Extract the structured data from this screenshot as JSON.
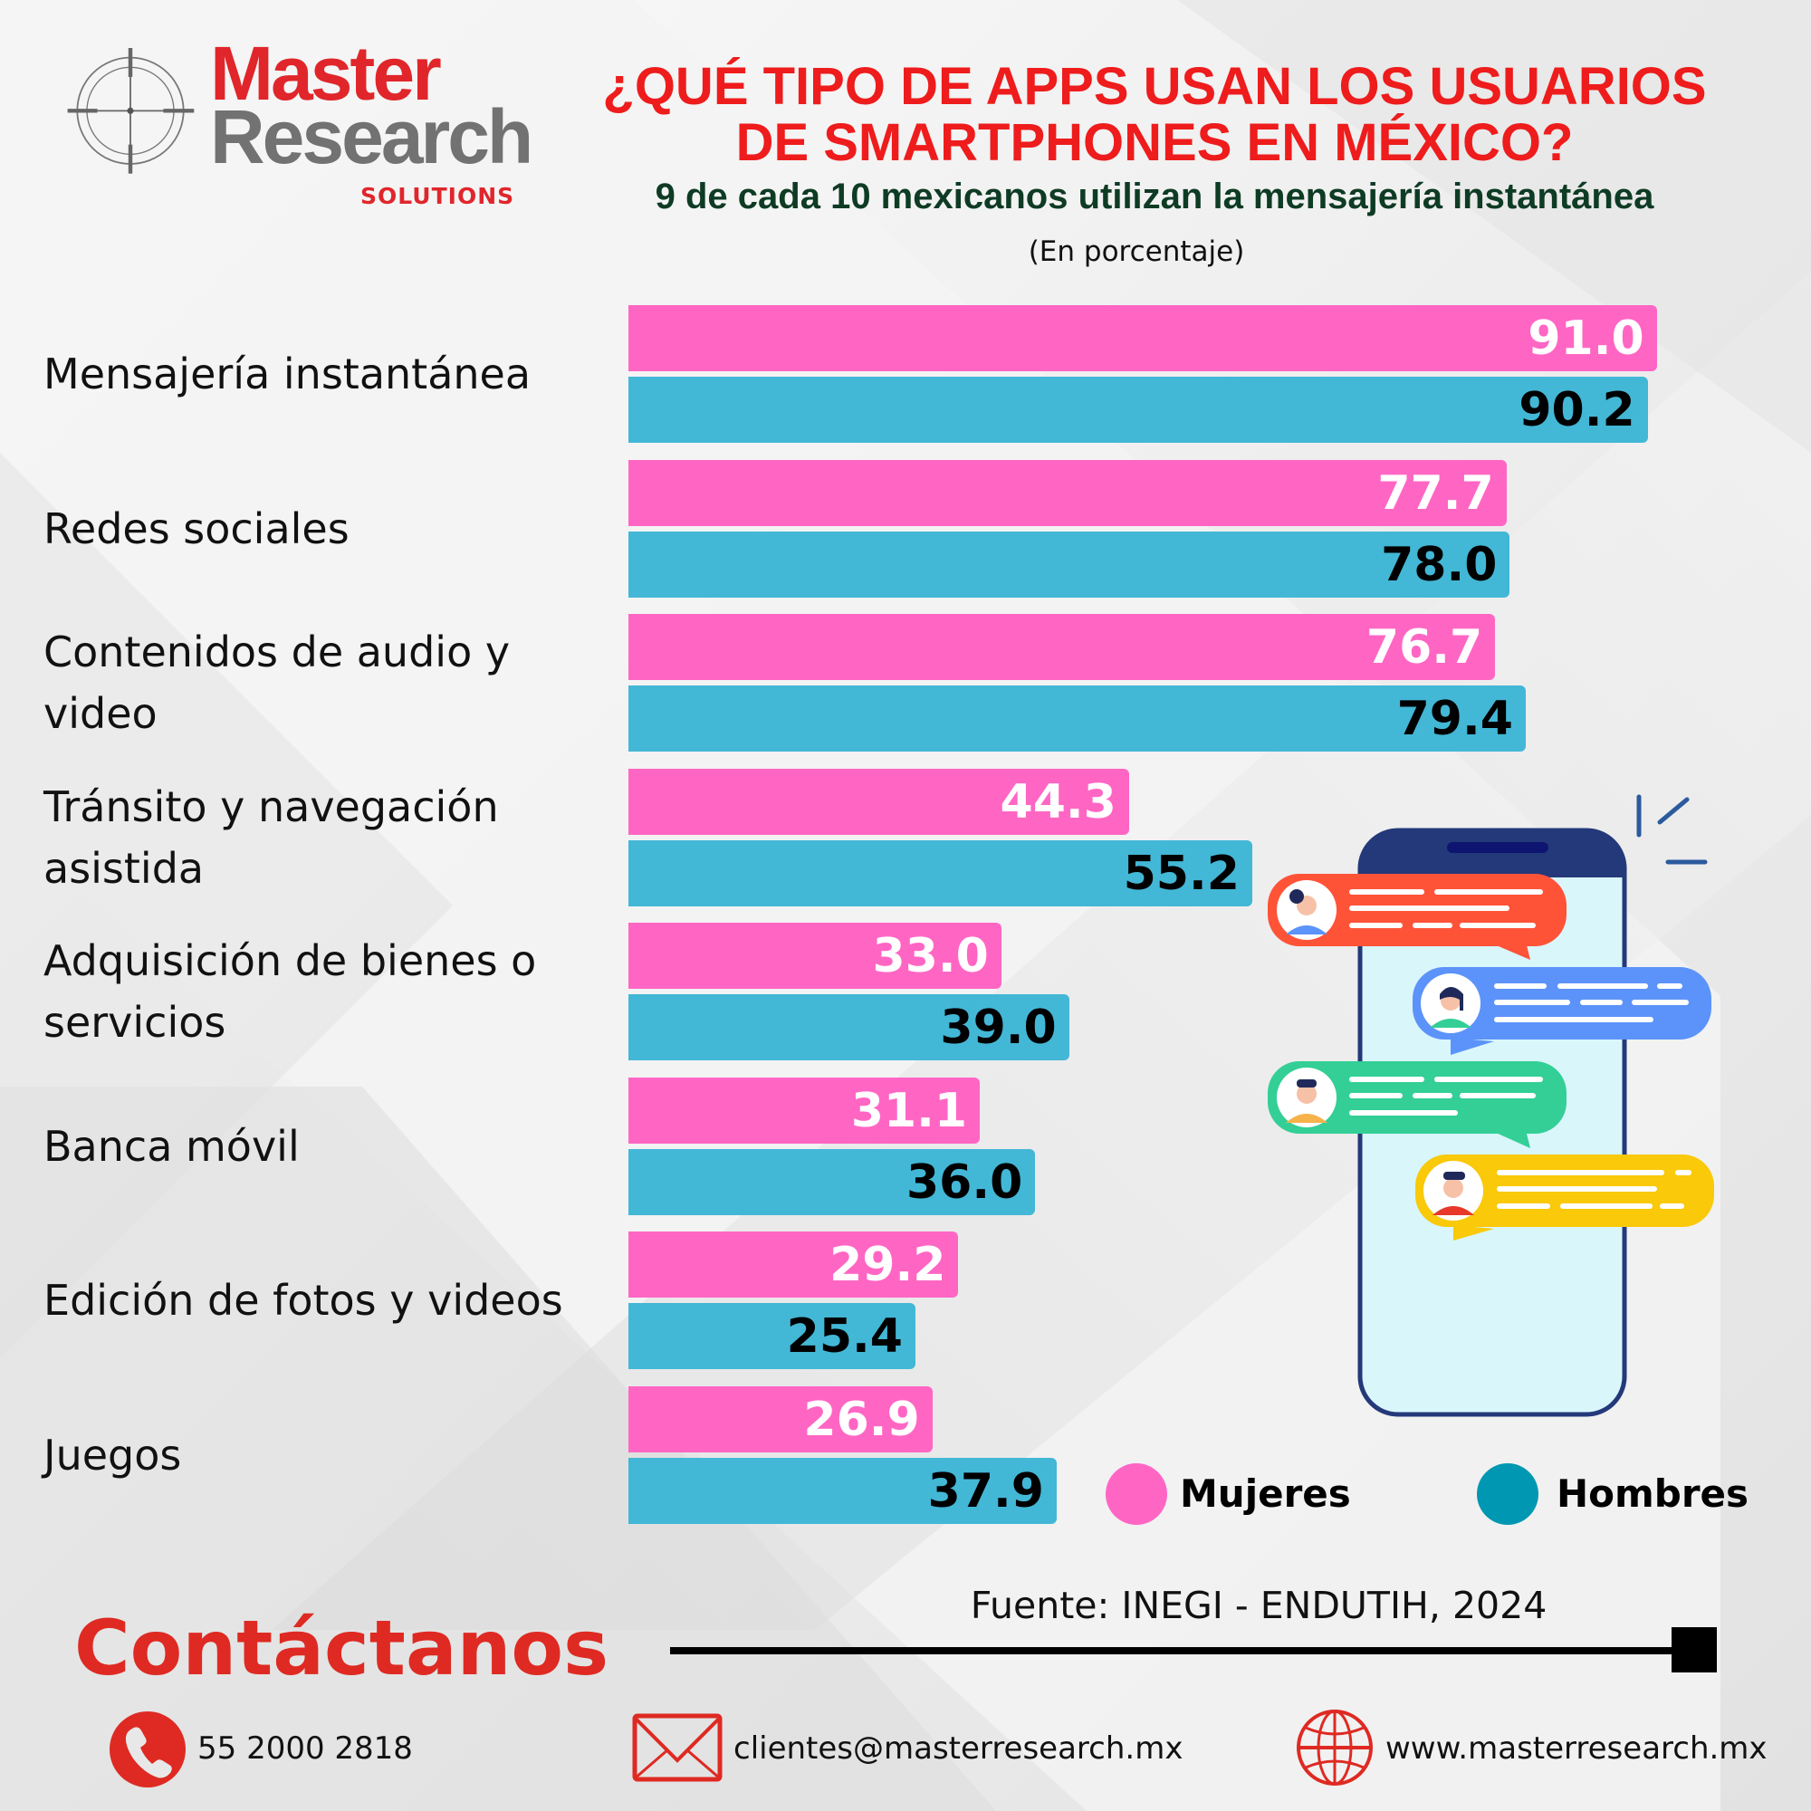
{
  "brand": {
    "name_line1": "Master",
    "name_line2": "Research",
    "tagline": "SOLUTIONS",
    "colors": {
      "red": "#e0262b",
      "gray": "#727272"
    }
  },
  "header": {
    "title_line1": "¿QUÉ TIPO DE APPS USAN LOS USUARIOS",
    "title_line2": "DE SMARTPHONES EN MÉXICO?",
    "subtitle": "9 de cada 10 mexicanos utilizan la mensajería instantánea",
    "unit_note": "(En porcentaje)"
  },
  "chart_data": {
    "type": "bar",
    "orientation": "horizontal",
    "title": "¿QUÉ TIPO DE APPS USAN LOS USUARIOS DE SMARTPHONES EN MÉXICO?",
    "subtitle": "9 de cada 10 mexicanos utilizan la mensajería instantánea",
    "xlabel": "(En porcentaje)",
    "ylabel": "",
    "xlim": [
      0,
      100
    ],
    "grid": false,
    "legend_position": "bottom-right",
    "categories": [
      "Mensajería instantánea",
      "Redes sociales",
      "Contenidos de audio y video",
      "Tránsito y navegación asistida",
      "Adquisición de bienes o servicios",
      "Banca móvil",
      "Edición de fotos y videos",
      "Juegos"
    ],
    "series": [
      {
        "name": "Mujeres",
        "color": "#ff66c4",
        "values": [
          91.0,
          77.7,
          76.7,
          44.3,
          33.0,
          31.1,
          29.2,
          26.9
        ]
      },
      {
        "name": "Hombres",
        "color": "#43b7d6",
        "values": [
          90.2,
          78.0,
          79.4,
          55.2,
          39.0,
          36.0,
          25.4,
          37.9
        ]
      }
    ],
    "value_labels": [
      [
        "91.0",
        "77.7",
        "76.7",
        "44.3",
        "33.0",
        "31.1",
        "29.2",
        "26.9"
      ],
      [
        "90.2",
        "78.0",
        "79.4",
        "55.2",
        "39.0",
        "36.0",
        "25.4",
        "37.9"
      ]
    ]
  },
  "legend": {
    "items": [
      {
        "label": "Mujeres",
        "color": "#ff66c4"
      },
      {
        "label": "Hombres",
        "color": "#0097b2"
      }
    ]
  },
  "footer": {
    "source": "Fuente: INEGI - ENDUTIH, 2024",
    "contact_title": "Contáctanos",
    "phone": "55 2000 2818",
    "email": "clientes@masterresearch.mx",
    "website": "www.masterresearch.mx",
    "icons": [
      "phone-icon",
      "mail-icon",
      "globe-icon"
    ]
  },
  "illustration": {
    "name": "smartphone-chat-illustration",
    "bubble_colors": [
      "#ff5338",
      "#5c93fa",
      "#33cf96",
      "#f9c90a"
    ]
  }
}
